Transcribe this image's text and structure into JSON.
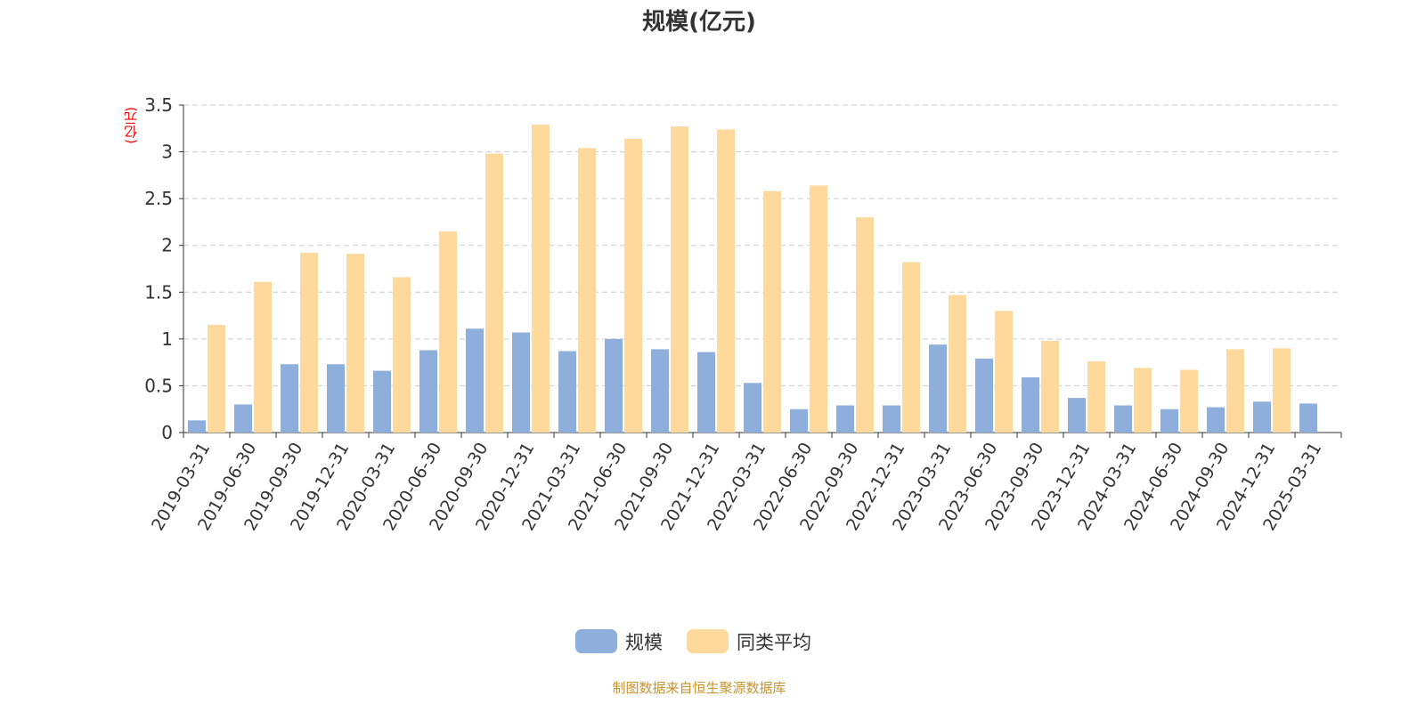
{
  "chart_data": {
    "type": "bar",
    "title": "规模(亿元)",
    "ylabel": "(亿元)",
    "ylim": [
      0,
      3.5
    ],
    "yticks": [
      "0",
      "0.5",
      "1",
      "1.5",
      "2",
      "2.5",
      "3",
      "3.5"
    ],
    "grid": true,
    "legend_position": "bottom",
    "categories": [
      "2019-03-31",
      "2019-06-30",
      "2019-09-30",
      "2019-12-31",
      "2020-03-31",
      "2020-06-30",
      "2020-09-30",
      "2020-12-31",
      "2021-03-31",
      "2021-06-30",
      "2021-09-30",
      "2021-12-31",
      "2022-03-31",
      "2022-06-30",
      "2022-09-30",
      "2022-12-31",
      "2023-03-31",
      "2023-06-30",
      "2023-09-30",
      "2023-12-31",
      "2024-03-31",
      "2024-06-30",
      "2024-09-30",
      "2024-12-31",
      "2025-03-31"
    ],
    "series": [
      {
        "name": "规模",
        "color": "#8eaedb",
        "values": [
          0.13,
          0.3,
          0.73,
          0.73,
          0.66,
          0.88,
          1.11,
          1.07,
          0.87,
          1.0,
          0.89,
          0.86,
          0.53,
          0.25,
          0.29,
          0.29,
          0.94,
          0.79,
          0.59,
          0.37,
          0.29,
          0.25,
          0.27,
          0.33,
          0.31
        ]
      },
      {
        "name": "同类平均",
        "color": "#fed99b",
        "values": [
          1.15,
          1.61,
          1.92,
          1.91,
          1.66,
          2.15,
          2.98,
          3.29,
          3.04,
          3.14,
          3.27,
          3.24,
          2.58,
          2.64,
          2.3,
          1.82,
          1.47,
          1.3,
          0.98,
          0.76,
          0.69,
          0.67,
          0.89,
          0.9,
          null
        ]
      }
    ]
  },
  "footer": "制图数据来自恒生聚源数据库"
}
